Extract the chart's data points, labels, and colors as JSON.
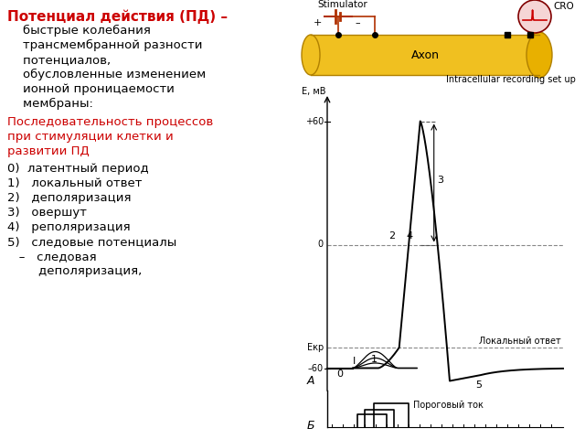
{
  "title_text": "Потенциал действия (ПД) –",
  "title_color": "#cc0000",
  "body_lines": [
    "    быстрые колебания",
    "    трансмембранной разности",
    "    потенциалов,",
    "    обусловленные изменением",
    "    ионной проницаемости",
    "    мембраны:"
  ],
  "subtitle_lines": [
    "Последовательность процессов",
    "при стимуляции клетки и",
    "развитии ПД"
  ],
  "subtitle_color": "#cc0000",
  "list_items": [
    "0)  латентный период",
    "1)   локальный ответ",
    "2)   деполяризация",
    "3)   овершут",
    "4)   реполяризация",
    "5)   следовые потенциалы",
    "   –   следовая",
    "        деполяризация,"
  ],
  "bg_color": "#ffffff",
  "text_color": "#000000",
  "axon_color": "#f0c020",
  "axon_edge": "#b08000",
  "stimulator_color": "#b03000",
  "cro_fill": "#f5d5d5",
  "cro_edge": "#800000",
  "graph_lw": 1.2,
  "label_intracell": "Intracellular recording set up",
  "label_axon": "Axon",
  "label_stimulator": "Stimulator",
  "label_cro": "CRO",
  "label_EmV": "E, мВ",
  "label_plus60": "+60",
  "label_minus60": "–60",
  "label_zero": "0",
  "label_ekr": "Екр",
  "label_local": "Локальный ответ",
  "label_porog": "Пороговый ток",
  "label_A": "А",
  "label_B": "Б"
}
